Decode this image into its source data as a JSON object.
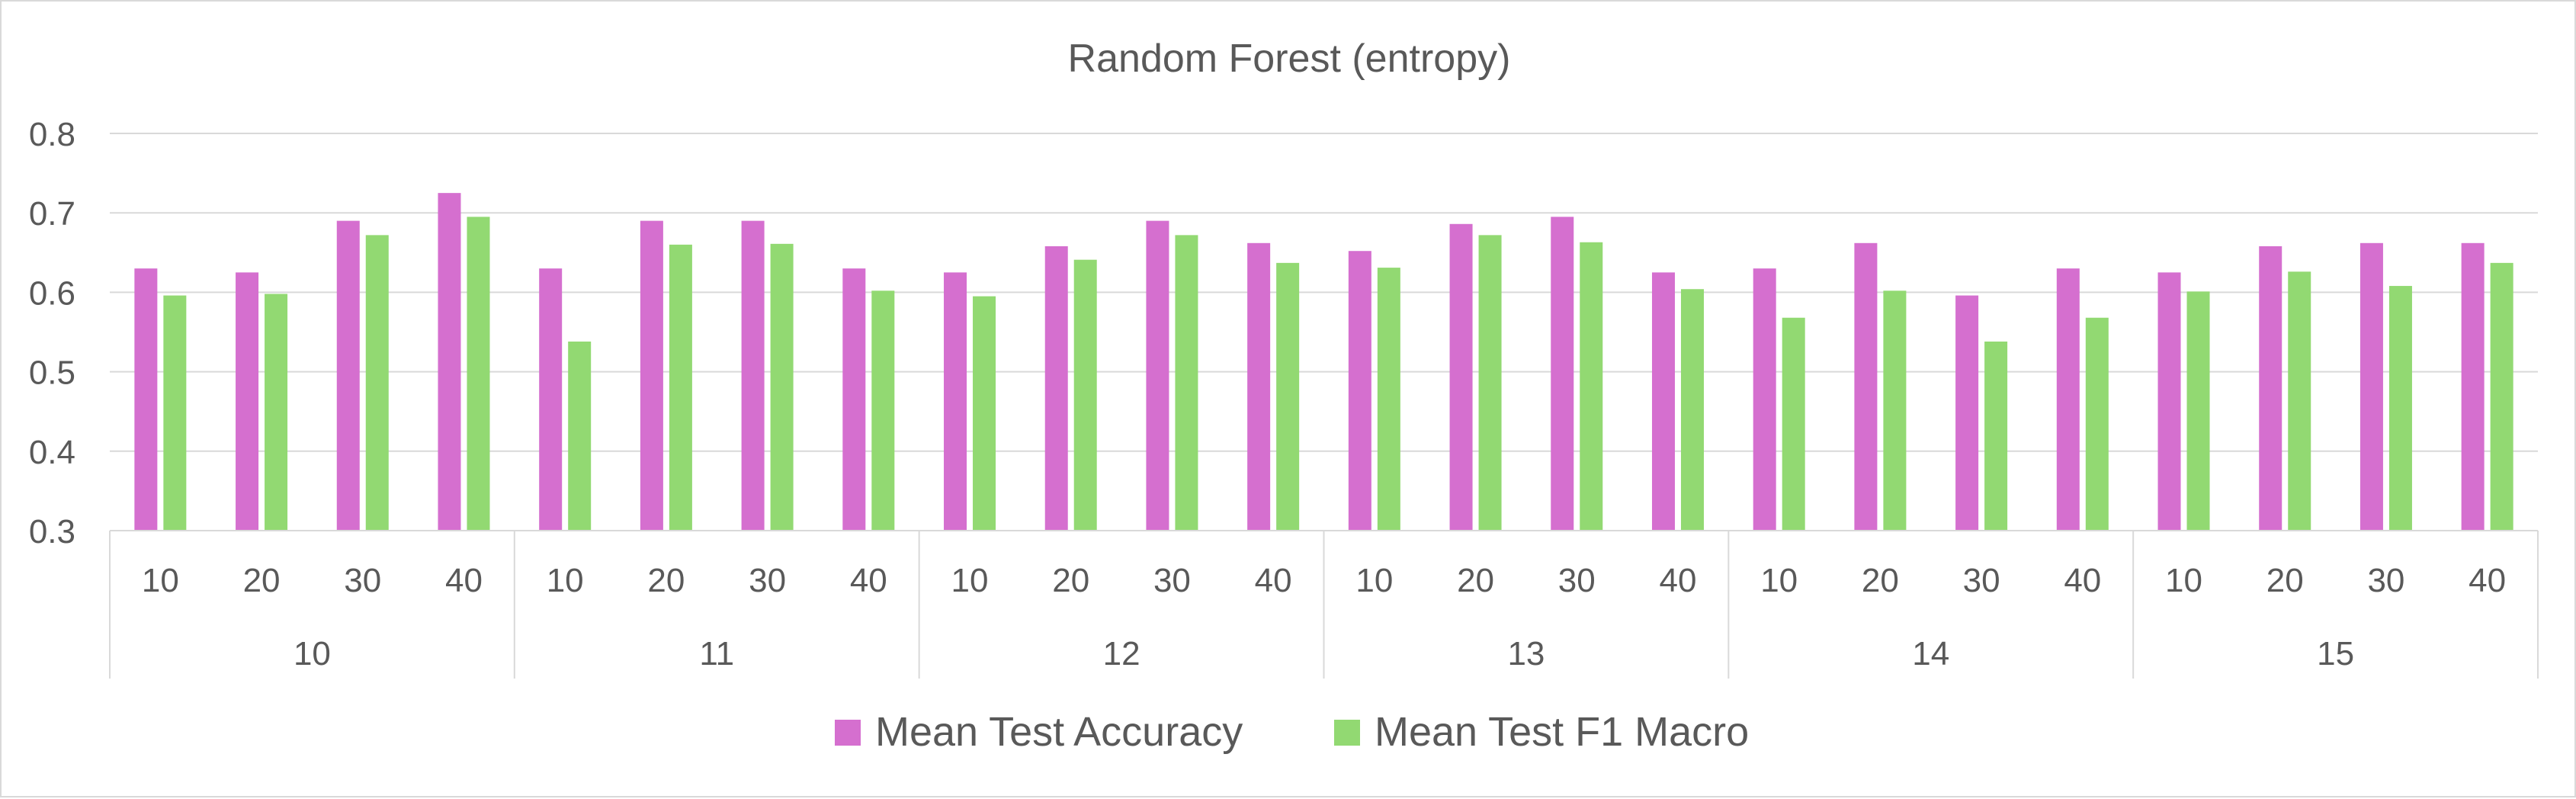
{
  "chart_data": {
    "type": "bar",
    "title": "Random Forest (entropy)",
    "xlabel": "",
    "ylabel": "",
    "ylim": [
      0.3,
      0.8
    ],
    "yticks": [
      "0.3",
      "0.4",
      "0.5",
      "0.6",
      "0.7",
      "0.8"
    ],
    "grid": true,
    "legend_position": "bottom",
    "groups": [
      "10",
      "11",
      "12",
      "13",
      "14",
      "15"
    ],
    "subcategories": [
      "10",
      "20",
      "30",
      "40"
    ],
    "series": [
      {
        "name": "Mean Test Accuracy",
        "color": "#d56fcf",
        "values": [
          0.63,
          0.625,
          0.69,
          0.725,
          0.63,
          0.69,
          0.69,
          0.63,
          0.625,
          0.658,
          0.69,
          0.662,
          0.652,
          0.686,
          0.695,
          0.625,
          0.63,
          0.662,
          0.596,
          0.63,
          0.625,
          0.658,
          0.662,
          0.662
        ]
      },
      {
        "name": "Mean Test F1 Macro",
        "color": "#92d972",
        "values": [
          0.596,
          0.598,
          0.672,
          0.695,
          0.538,
          0.66,
          0.661,
          0.602,
          0.595,
          0.641,
          0.672,
          0.637,
          0.631,
          0.672,
          0.663,
          0.604,
          0.568,
          0.602,
          0.538,
          0.568,
          0.601,
          0.626,
          0.608,
          0.637
        ]
      }
    ]
  },
  "colors": {
    "grid": "#d9d9d9",
    "text": "#595959",
    "axis": "#d9d9d9"
  }
}
